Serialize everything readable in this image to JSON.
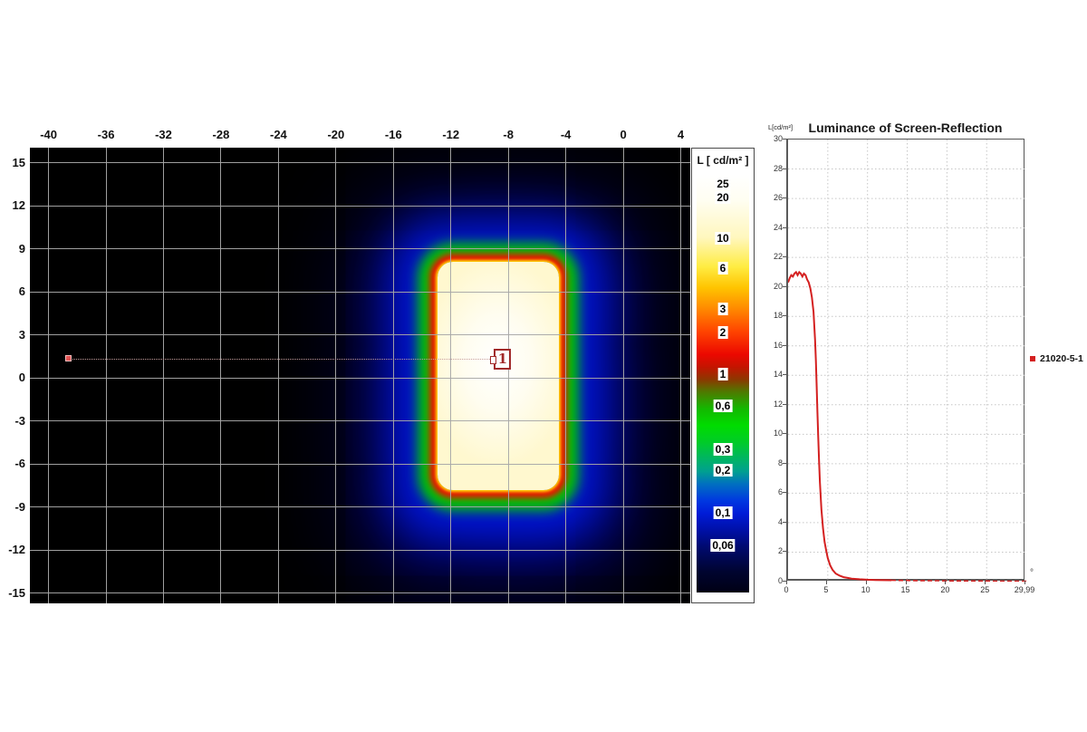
{
  "window": {
    "background": "#ffffff"
  },
  "chart_data": [
    {
      "type": "heatmap",
      "id": "luminance-false-color-map",
      "title": "",
      "x_ticks": [
        -40,
        -36,
        -32,
        -28,
        -24,
        -20,
        -16,
        -12,
        -8,
        -4,
        0,
        4
      ],
      "y_ticks": [
        15,
        12,
        9,
        6,
        3,
        0,
        -3,
        -6,
        -9,
        -12,
        -15
      ],
      "x_range": [
        -41.3,
        4.66
      ],
      "y_range": [
        -15.72,
        16.07
      ],
      "grid": true,
      "background_color": "#000000",
      "grid_color": "#a8a8a8",
      "hot_region_deg": {
        "x1": -12.9,
        "x2": -4.5,
        "y1": -7.8,
        "y2": 8.1
      },
      "iso_levels": [
        {
          "approx_cdm2": "20-25",
          "color": "#fff9d6"
        },
        {
          "approx_cdm2": "6-10",
          "color": "#ffe400"
        },
        {
          "approx_cdm2": "2-3",
          "color": "#ef1300"
        },
        {
          "approx_cdm2": "0,3-0,6",
          "color": "#00c400"
        },
        {
          "approx_cdm2": "0,06-0,1",
          "color": "#0017e0"
        }
      ],
      "marker": {
        "label": "1",
        "x_deg": -8.4,
        "y_deg": 1.3
      },
      "probe_line": {
        "from_x_deg": -38.6,
        "to_x_deg": -8.9,
        "y_deg": 1.3
      },
      "color_scale": {
        "title": "L [ cd/m² ]",
        "scale": "log",
        "entries": [
          {
            "label": "25",
            "f": 0.022
          },
          {
            "label": "20",
            "f": 0.054
          },
          {
            "label": "10",
            "f": 0.152
          },
          {
            "label": "6",
            "f": 0.224
          },
          {
            "label": "3",
            "f": 0.32
          },
          {
            "label": "2",
            "f": 0.378
          },
          {
            "label": "1",
            "f": 0.478
          },
          {
            "label": "0,6",
            "f": 0.554
          },
          {
            "label": "0,3",
            "f": 0.657
          },
          {
            "label": "0,2",
            "f": 0.707
          },
          {
            "label": "0,1",
            "f": 0.809
          },
          {
            "label": "0,06",
            "f": 0.887
          }
        ]
      }
    },
    {
      "type": "line",
      "id": "reflection-profile",
      "title": "Luminance of Screen-Reflection",
      "y_axis_label": "L[cd/m²]",
      "x_axis_label": "°",
      "xlim": [
        0,
        29.99
      ],
      "ylim": [
        0,
        30
      ],
      "x_ticks": [
        {
          "v": 0,
          "label": "0"
        },
        {
          "v": 5,
          "label": "5"
        },
        {
          "v": 10,
          "label": "10"
        },
        {
          "v": 15,
          "label": "15"
        },
        {
          "v": 20,
          "label": "20"
        },
        {
          "v": 25,
          "label": "25"
        },
        {
          "v": 29.99,
          "label": "29,99"
        }
      ],
      "y_ticks": [
        30,
        28,
        26,
        24,
        22,
        20,
        18,
        16,
        14,
        12,
        10,
        8,
        6,
        4,
        2,
        0
      ],
      "grid": "dotted",
      "legend_position": "right",
      "series": [
        {
          "name": "21020-5-1",
          "color": "#d42020",
          "points": [
            [
              0,
              20.3
            ],
            [
              0.2,
              20.6
            ],
            [
              0.4,
              20.8
            ],
            [
              0.6,
              20.7
            ],
            [
              0.8,
              20.9
            ],
            [
              1.0,
              21.0
            ],
            [
              1.2,
              20.8
            ],
            [
              1.4,
              21.0
            ],
            [
              1.6,
              20.9
            ],
            [
              1.8,
              20.7
            ],
            [
              2.0,
              20.9
            ],
            [
              2.2,
              20.8
            ],
            [
              2.4,
              20.5
            ],
            [
              2.6,
              20.3
            ],
            [
              2.8,
              19.9
            ],
            [
              3.0,
              19.3
            ],
            [
              3.2,
              18.3
            ],
            [
              3.4,
              16.4
            ],
            [
              3.5,
              15.0
            ],
            [
              3.6,
              13.2
            ],
            [
              3.7,
              11.5
            ],
            [
              3.8,
              9.8
            ],
            [
              3.9,
              8.2
            ],
            [
              4.0,
              6.8
            ],
            [
              4.2,
              4.9
            ],
            [
              4.4,
              3.6
            ],
            [
              4.6,
              2.7
            ],
            [
              4.8,
              2.1
            ],
            [
              5.0,
              1.6
            ],
            [
              5.3,
              1.1
            ],
            [
              5.6,
              0.8
            ],
            [
              6.0,
              0.55
            ],
            [
              6.5,
              0.4
            ],
            [
              7.0,
              0.3
            ],
            [
              7.5,
              0.25
            ],
            [
              8.0,
              0.2
            ],
            [
              9.0,
              0.16
            ],
            [
              10.0,
              0.13
            ],
            [
              11,
              0.11
            ],
            [
              12,
              0.1
            ],
            [
              13,
              0.09
            ],
            [
              14,
              0.08
            ],
            [
              15,
              0.08
            ],
            [
              16,
              0.07
            ],
            [
              17,
              0.07
            ],
            [
              18,
              0.06
            ],
            [
              19,
              0.06
            ],
            [
              20,
              0.05
            ],
            [
              21,
              0.05
            ],
            [
              22,
              0.05
            ],
            [
              23,
              0.04
            ],
            [
              24,
              0.04
            ],
            [
              25,
              0.04
            ],
            [
              26,
              0.03
            ],
            [
              27,
              0.03
            ],
            [
              28,
              0.03
            ],
            [
              29,
              0.03
            ],
            [
              29.99,
              0.03
            ]
          ]
        }
      ]
    }
  ]
}
